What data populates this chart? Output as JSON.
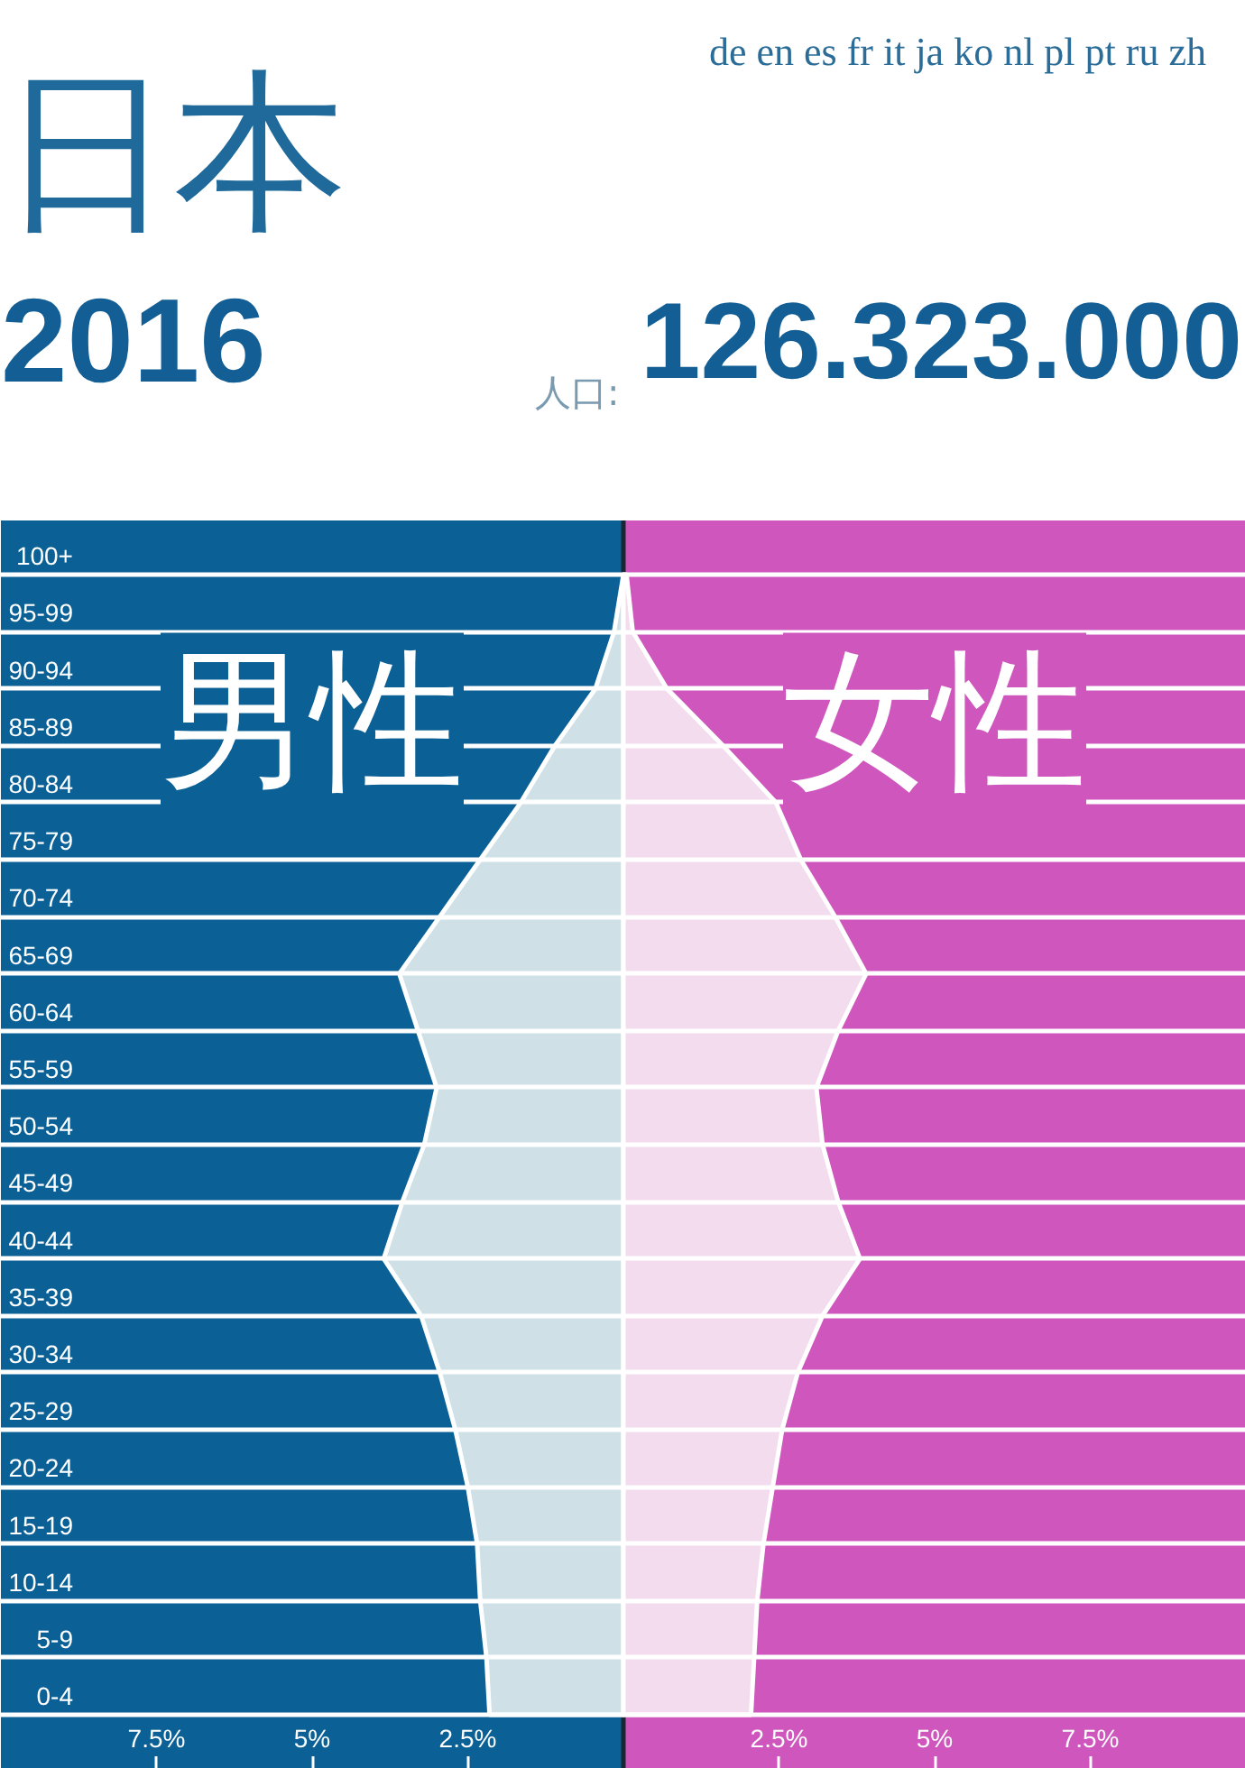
{
  "chart_data": {
    "type": "area",
    "orientation": "horizontal",
    "title": "日本",
    "subtitle": "2016",
    "annotations": [
      "人口:",
      "126.323.000",
      "de en es fr it ja ko nl pl pt ru zh"
    ],
    "categories": [
      "100+",
      "95-99",
      "90-94",
      "85-89",
      "80-84",
      "75-79",
      "70-74",
      "65-69",
      "60-64",
      "55-59",
      "50-54",
      "45-49",
      "40-44",
      "35-39",
      "30-34",
      "25-29",
      "20-24",
      "15-19",
      "10-14",
      "5-9",
      "0-4"
    ],
    "series": [
      {
        "name": "男性",
        "color": "#cfe0e7",
        "values": [
          0,
          -0.15,
          -0.45,
          -1.1,
          -1.65,
          -2.3,
          -2.95,
          -3.6,
          -3.3,
          -3.0,
          -3.2,
          -3.55,
          -3.85,
          -3.25,
          -2.95,
          -2.7,
          -2.5,
          -2.35,
          -2.3,
          -2.2,
          -2.15
        ]
      },
      {
        "name": "女性",
        "color": "#f3dcee",
        "values": [
          0.05,
          0.15,
          0.7,
          1.6,
          2.45,
          2.85,
          3.4,
          3.9,
          3.45,
          3.1,
          3.2,
          3.45,
          3.8,
          3.2,
          2.8,
          2.55,
          2.4,
          2.25,
          2.15,
          2.1,
          2.05
        ]
      }
    ],
    "xlim": [
      -10,
      10
    ],
    "xticks": [
      {
        "value": -7.5,
        "label": "7.5%"
      },
      {
        "value": -5,
        "label": "5%"
      },
      {
        "value": -2.5,
        "label": "2.5%"
      },
      {
        "value": 2.5,
        "label": "2.5%"
      },
      {
        "value": 5,
        "label": "5%"
      },
      {
        "value": 7.5,
        "label": "7.5%"
      }
    ],
    "bands": [
      {
        "axis": "x",
        "from": -10,
        "to": 0,
        "color": "#0b6096"
      },
      {
        "axis": "x",
        "from": 0,
        "to": 10,
        "color": "#ce56bd"
      }
    ],
    "ref_lines": [
      {
        "axis": "x",
        "value": 0,
        "color": "#1b2632"
      }
    ],
    "grid": "y"
  }
}
